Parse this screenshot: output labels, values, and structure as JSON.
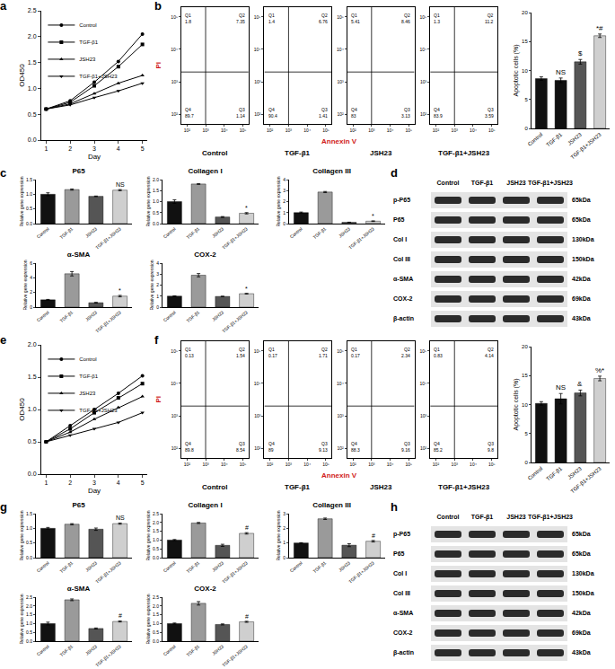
{
  "chart_data": [
    {
      "panel": "a",
      "type": "line",
      "x": [
        1,
        2,
        3,
        4,
        5
      ],
      "x_label": "Day",
      "y_label": "OD450",
      "xlim": [
        0.8,
        5.2
      ],
      "xticks": [
        1,
        2,
        3,
        4,
        5
      ],
      "ylim": [
        0,
        2.5
      ],
      "yticks": [
        {
          "value": 0,
          "label": "0.0"
        },
        0.5,
        {
          "value": 1,
          "label": "1.0"
        },
        1.5,
        {
          "value": 2,
          "label": "2.0"
        },
        2.5
      ],
      "legend": "upper left",
      "series": [
        {
          "name": "Control",
          "color": "#000000",
          "marker": "circle",
          "line_style": "solid",
          "values": [
            0.6,
            0.76,
            1.12,
            1.52,
            2.05
          ]
        },
        {
          "name": "TGF-β1",
          "color": "#000000",
          "marker": "square",
          "line_style": "solid",
          "values": [
            0.6,
            0.73,
            1.05,
            1.42,
            1.85
          ]
        },
        {
          "name": "JSH23",
          "color": "#000000",
          "marker": "triangle-up",
          "line_style": "solid",
          "values": [
            0.6,
            0.7,
            0.9,
            1.1,
            1.25
          ]
        },
        {
          "name": "TGF-β1+JSH23",
          "color": "#000000",
          "marker": "triangle-down",
          "line_style": "solid",
          "values": [
            0.6,
            0.68,
            0.82,
            0.95,
            1.1
          ]
        }
      ]
    },
    {
      "panel": "b",
      "type": "quadrant",
      "x_label": "Annexin V",
      "y_label": "PI",
      "log": true,
      "xlim": [
        50,
        200000
      ],
      "ylim": [
        50,
        200000
      ],
      "xticks": [
        {
          "value": 100,
          "label": "10²"
        },
        {
          "value": 1000,
          "label": "10³"
        },
        {
          "value": 10000,
          "label": "10⁴"
        },
        {
          "value": 100000,
          "label": "10⁵"
        }
      ],
      "yticks": [
        {
          "value": 100,
          "label": "10²"
        },
        {
          "value": 1000,
          "label": "10³"
        },
        {
          "value": 10000,
          "label": "10⁴"
        },
        {
          "value": 100000,
          "label": "10⁵"
        }
      ],
      "gate_x": 1000,
      "gate_y": 2000,
      "plots": [
        {
          "name": "Control",
          "quadrants": [
            {
              "label": "Q1",
              "value": 1.8
            },
            {
              "label": "Q2",
              "value": 7.35
            },
            {
              "label": "Q3",
              "value": 1.14
            },
            {
              "label": "Q4",
              "value": 89.7
            }
          ]
        },
        {
          "name": "TGF-β1",
          "quadrants": [
            {
              "label": "Q1",
              "value": 1.4
            },
            {
              "label": "Q2",
              "value": 6.76
            },
            {
              "label": "Q3",
              "value": 1.41
            },
            {
              "label": "Q4",
              "value": 90.4
            }
          ]
        },
        {
          "name": "JSH23",
          "quadrants": [
            {
              "label": "Q1",
              "value": 5.41
            },
            {
              "label": "Q2",
              "value": 8.46
            },
            {
              "label": "Q3",
              "value": 3.13
            },
            {
              "label": "Q4",
              "value": 83
            }
          ]
        },
        {
          "name": "TGF-β1+JSH23",
          "quadrants": [
            {
              "label": "Q1",
              "value": 1.3
            },
            {
              "label": "Q2",
              "value": 11.2
            },
            {
              "label": "Q3",
              "value": 3.59
            },
            {
              "label": "Q4",
              "value": 83.9
            }
          ]
        }
      ]
    },
    {
      "type": "bar",
      "y_label": "Apoptotic cells (%)",
      "categories": [
        "Control",
        "TGF-β1",
        "JSH23",
        "TGF-β1+JSH23"
      ],
      "values": [
        8.6,
        8.3,
        11.5,
        16
      ],
      "errors": [
        0.3,
        0.4,
        0.4,
        0.3
      ],
      "significance": [
        null,
        "NS",
        "$",
        "*#"
      ],
      "colors": [
        "#111111",
        "#111111",
        "#555555",
        "#cfcfcf"
      ],
      "ylim": [
        0,
        20
      ],
      "yticks": [
        0,
        5,
        10,
        15,
        20
      ]
    },
    {
      "panel": "c",
      "type": "bar",
      "title": "P65",
      "y_label": "Relative gene expression",
      "categories": [
        "Control",
        "TGF-β1",
        "JSH23",
        "TGF-β1+JSH23"
      ],
      "values": [
        1.0,
        1.16,
        0.93,
        1.14
      ],
      "errors": [
        0.05,
        0.02,
        0.01,
        0.02
      ],
      "significance": [
        null,
        null,
        null,
        "NS"
      ],
      "colors": [
        "#111111",
        "#9a9a9a",
        "#555555",
        "#cfcfcf"
      ],
      "ylim": [
        0,
        1.5
      ],
      "yticks": [
        {
          "value": 0,
          "label": "0.0"
        },
        0.5,
        {
          "value": 1,
          "label": "1.0"
        },
        1.5
      ]
    },
    {
      "type": "bar",
      "title": "Collagen I",
      "y_label": "Relative gene expression",
      "categories": [
        "Control",
        "TGF-β1",
        "JSH23",
        "TGF-β1+JSH23"
      ],
      "values": [
        1.0,
        1.8,
        0.3,
        0.47
      ],
      "errors": [
        0.08,
        0.02,
        0.02,
        0.03
      ],
      "significance": [
        null,
        null,
        null,
        "*"
      ],
      "colors": [
        "#111111",
        "#9a9a9a",
        "#555555",
        "#cfcfcf"
      ],
      "ylim": [
        0,
        2
      ],
      "yticks": [
        {
          "value": 0,
          "label": "0.0"
        },
        0.5,
        {
          "value": 1,
          "label": "1.0"
        },
        1.5,
        {
          "value": 2,
          "label": "2.0"
        }
      ]
    },
    {
      "type": "bar",
      "title": "Collagen III",
      "y_label": "Relative gene expression",
      "categories": [
        "Control",
        "TGF-β1",
        "JSH23",
        "TGF-β1+JSH23"
      ],
      "values": [
        1.0,
        2.87,
        0.12,
        0.22
      ],
      "errors": [
        0.05,
        0.05,
        0.01,
        0.03
      ],
      "significance": [
        null,
        null,
        null,
        "*"
      ],
      "colors": [
        "#111111",
        "#9a9a9a",
        "#555555",
        "#cfcfcf"
      ],
      "ylim": [
        0,
        4
      ],
      "yticks": [
        0,
        1,
        2,
        3,
        4
      ]
    },
    {
      "type": "bar",
      "title": "α-SMA",
      "y_label": "Relative gene expression",
      "categories": [
        "Control",
        "TGF-β1",
        "JSH23",
        "TGF-β1+JSH23"
      ],
      "values": [
        1.0,
        4.55,
        0.6,
        1.5
      ],
      "errors": [
        0.05,
        0.3,
        0.05,
        0.1
      ],
      "significance": [
        null,
        null,
        null,
        "*"
      ],
      "colors": [
        "#111111",
        "#9a9a9a",
        "#555555",
        "#cfcfcf"
      ],
      "ylim": [
        0,
        6
      ],
      "yticks": [
        0,
        2,
        4,
        6
      ]
    },
    {
      "type": "bar",
      "title": "COX-2",
      "y_label": "Relative gene expression",
      "categories": [
        "Control",
        "TGF-β1",
        "JSH23",
        "TGF-β1+JSH23"
      ],
      "values": [
        1.0,
        2.9,
        0.97,
        1.22
      ],
      "errors": [
        0.02,
        0.15,
        0.02,
        0.03
      ],
      "significance": [
        null,
        null,
        null,
        "*"
      ],
      "colors": [
        "#111111",
        "#9a9a9a",
        "#555555",
        "#cfcfcf"
      ],
      "ylim": [
        0,
        4
      ],
      "yticks": [
        0,
        1,
        2,
        3,
        4
      ]
    },
    {
      "panel": "d",
      "type": "western_blot",
      "columns": [
        "Control",
        "TGF-β1",
        "JSH23",
        "TGF-β1+JSH23"
      ],
      "rows": [
        {
          "label": "p-P65",
          "size": "65kDa"
        },
        {
          "label": "P65",
          "size": "65kDa"
        },
        {
          "label": "Col I",
          "size": "130kDa"
        },
        {
          "label": "Col III",
          "size": "150kDa"
        },
        {
          "label": "α-SMA",
          "size": "42kDa"
        },
        {
          "label": "COX-2",
          "size": "69kDa"
        },
        {
          "label": "β-actin",
          "size": "43kDa"
        }
      ]
    },
    {
      "panel": "e",
      "type": "line",
      "x": [
        1,
        2,
        3,
        4,
        5
      ],
      "x_label": "Day",
      "y_label": "OD450",
      "xlim": [
        0.8,
        5.2
      ],
      "xticks": [
        1,
        2,
        3,
        4,
        5
      ],
      "ylim": [
        0,
        2
      ],
      "yticks": [
        {
          "value": 0,
          "label": "0.0"
        },
        0.5,
        {
          "value": 1,
          "label": "1.0"
        },
        1.5,
        {
          "value": 2,
          "label": "2.0"
        }
      ],
      "legend": "upper left",
      "series": [
        {
          "name": "Control",
          "color": "#000000",
          "marker": "circle",
          "line_style": "solid",
          "values": [
            0.5,
            0.75,
            1.0,
            1.25,
            1.52
          ]
        },
        {
          "name": "TGF-β1",
          "color": "#000000",
          "marker": "square",
          "line_style": "solid",
          "values": [
            0.5,
            0.7,
            0.95,
            1.18,
            1.4
          ]
        },
        {
          "name": "JSH23",
          "color": "#000000",
          "marker": "triangle-up",
          "line_style": "solid",
          "values": [
            0.5,
            0.65,
            0.85,
            1.03,
            1.2
          ]
        },
        {
          "name": "TGF-β1+JSH23",
          "color": "#000000",
          "marker": "triangle-down",
          "line_style": "solid",
          "values": [
            0.5,
            0.6,
            0.7,
            0.8,
            0.95
          ]
        }
      ]
    },
    {
      "panel": "f",
      "type": "quadrant",
      "x_label": "Annexin V",
      "y_label": "PI",
      "log": true,
      "xlim": [
        50,
        200000
      ],
      "ylim": [
        50,
        200000
      ],
      "xticks": [
        {
          "value": 100,
          "label": "10²"
        },
        {
          "value": 1000,
          "label": "10³"
        },
        {
          "value": 10000,
          "label": "10⁴"
        },
        {
          "value": 100000,
          "label": "10⁵"
        }
      ],
      "yticks": [
        {
          "value": 100,
          "label": "10²"
        },
        {
          "value": 1000,
          "label": "10³"
        },
        {
          "value": 10000,
          "label": "10⁴"
        },
        {
          "value": 100000,
          "label": "10⁵"
        }
      ],
      "gate_x": 1000,
      "gate_y": 2000,
      "plots": [
        {
          "name": "Control",
          "quadrants": [
            {
              "label": "Q1",
              "value": 0.13
            },
            {
              "label": "Q2",
              "value": 1.54
            },
            {
              "label": "Q3",
              "value": 8.54
            },
            {
              "label": "Q4",
              "value": 89.8
            }
          ]
        },
        {
          "name": "TGF-β1",
          "quadrants": [
            {
              "label": "Q1",
              "value": 0.17
            },
            {
              "label": "Q2",
              "value": 1.71
            },
            {
              "label": "Q3",
              "value": 9.13
            },
            {
              "label": "Q4",
              "value": 89
            }
          ]
        },
        {
          "name": "JSH23",
          "quadrants": [
            {
              "label": "Q1",
              "value": 0.17
            },
            {
              "label": "Q2",
              "value": 2.34
            },
            {
              "label": "Q3",
              "value": 9.16
            },
            {
              "label": "Q4",
              "value": 88.3
            }
          ]
        },
        {
          "name": "TGF-β1+JSH23",
          "quadrants": [
            {
              "label": "Q1",
              "value": 0.83
            },
            {
              "label": "Q2",
              "value": 4.14
            },
            {
              "label": "Q3",
              "value": 9.8
            },
            {
              "label": "Q4",
              "value": 85.2
            }
          ]
        }
      ]
    },
    {
      "type": "bar",
      "y_label": "Apoptotic cells (%)",
      "categories": [
        "Control",
        "TGF-β1",
        "JSH23",
        "TGF-β1+JSH23"
      ],
      "values": [
        10.2,
        11,
        12,
        14.5
      ],
      "errors": [
        0.3,
        0.9,
        0.5,
        0.4
      ],
      "significance": [
        null,
        "NS",
        "&",
        "%*"
      ],
      "colors": [
        "#111111",
        "#111111",
        "#555555",
        "#cfcfcf"
      ],
      "ylim": [
        0,
        20
      ],
      "yticks": [
        0,
        5,
        10,
        15,
        20
      ]
    },
    {
      "panel": "g",
      "type": "bar",
      "title": "P65",
      "y_label": "Relative gene expression",
      "categories": [
        "Control",
        "TGF-β1",
        "JSH23",
        "TGF-β1+JSH23"
      ],
      "values": [
        1.0,
        1.14,
        0.97,
        1.16
      ],
      "errors": [
        0.03,
        0.02,
        0.04,
        0.02
      ],
      "significance": [
        null,
        null,
        null,
        "NS"
      ],
      "colors": [
        "#111111",
        "#9a9a9a",
        "#555555",
        "#cfcfcf"
      ],
      "ylim": [
        0,
        1.5
      ],
      "yticks": [
        {
          "value": 0,
          "label": "0.0"
        },
        0.5,
        {
          "value": 1,
          "label": "1.0"
        },
        1.5
      ]
    },
    {
      "type": "bar",
      "title": "Collagen I",
      "y_label": "Relative gene expression",
      "categories": [
        "Control",
        "TGF-β1",
        "JSH23",
        "TGF-β1+JSH23"
      ],
      "values": [
        1.0,
        1.97,
        0.7,
        1.38
      ],
      "errors": [
        0.03,
        0.03,
        0.06,
        0.04
      ],
      "significance": [
        null,
        null,
        null,
        "#"
      ],
      "colors": [
        "#111111",
        "#9a9a9a",
        "#555555",
        "#cfcfcf"
      ],
      "ylim": [
        0,
        2.5
      ],
      "yticks": [
        {
          "value": 0,
          "label": "0.0"
        },
        0.5,
        {
          "value": 1,
          "label": "1.0"
        },
        1.5,
        {
          "value": 2,
          "label": "2.0"
        },
        2.5
      ]
    },
    {
      "type": "bar",
      "title": "Collagen III",
      "y_label": "Relative gene expression",
      "categories": [
        "Control",
        "TGF-β1",
        "JSH23",
        "TGF-β1+JSH23"
      ],
      "values": [
        1.0,
        2.65,
        0.85,
        1.12
      ],
      "errors": [
        0.02,
        0.05,
        0.1,
        0.05
      ],
      "significance": [
        null,
        null,
        null,
        "#"
      ],
      "colors": [
        "#111111",
        "#9a9a9a",
        "#555555",
        "#cfcfcf"
      ],
      "ylim": [
        0,
        3
      ],
      "yticks": [
        0,
        1,
        2,
        3
      ]
    },
    {
      "type": "bar",
      "title": "α-SMA",
      "y_label": "Relative gene expression",
      "categories": [
        "Control",
        "TGF-β1",
        "JSH23",
        "TGF-β1+JSH23"
      ],
      "values": [
        1.0,
        2.35,
        0.72,
        1.12
      ],
      "errors": [
        0.08,
        0.05,
        0.03,
        0.03
      ],
      "significance": [
        null,
        null,
        null,
        "#"
      ],
      "colors": [
        "#111111",
        "#9a9a9a",
        "#555555",
        "#cfcfcf"
      ],
      "ylim": [
        0,
        2.5
      ],
      "yticks": [
        {
          "value": 0,
          "label": "0.0"
        },
        0.5,
        {
          "value": 1,
          "label": "1.0"
        },
        1.5,
        {
          "value": 2,
          "label": "2.0"
        },
        2.5
      ]
    },
    {
      "type": "bar",
      "title": "COX-2",
      "y_label": "Relative gene expression",
      "categories": [
        "Control",
        "TGF-β1",
        "JSH23",
        "TGF-β1+JSH23"
      ],
      "values": [
        1.0,
        2.15,
        0.95,
        1.1
      ],
      "errors": [
        0.03,
        0.1,
        0.03,
        0.03
      ],
      "significance": [
        null,
        null,
        null,
        "#"
      ],
      "colors": [
        "#111111",
        "#9a9a9a",
        "#555555",
        "#cfcfcf"
      ],
      "ylim": [
        0,
        2.5
      ],
      "yticks": [
        {
          "value": 0,
          "label": "0.0"
        },
        0.5,
        {
          "value": 1,
          "label": "1.0"
        },
        1.5,
        {
          "value": 2,
          "label": "2.0"
        },
        2.5
      ]
    },
    {
      "panel": "h",
      "type": "western_blot",
      "columns": [
        "Control",
        "TGF-β1",
        "JSH23",
        "TGF-β1+JSH23"
      ],
      "rows": [
        {
          "label": "p-P65",
          "size": "65kDa"
        },
        {
          "label": "P65",
          "size": "65kDa"
        },
        {
          "label": "Col I",
          "size": "130kDa"
        },
        {
          "label": "Col III",
          "size": "150kDa"
        },
        {
          "label": "α-SMA",
          "size": "42kDa"
        },
        {
          "label": "COX-2",
          "size": "69kDa"
        },
        {
          "label": "β-actin",
          "size": "43kDa"
        }
      ]
    }
  ]
}
